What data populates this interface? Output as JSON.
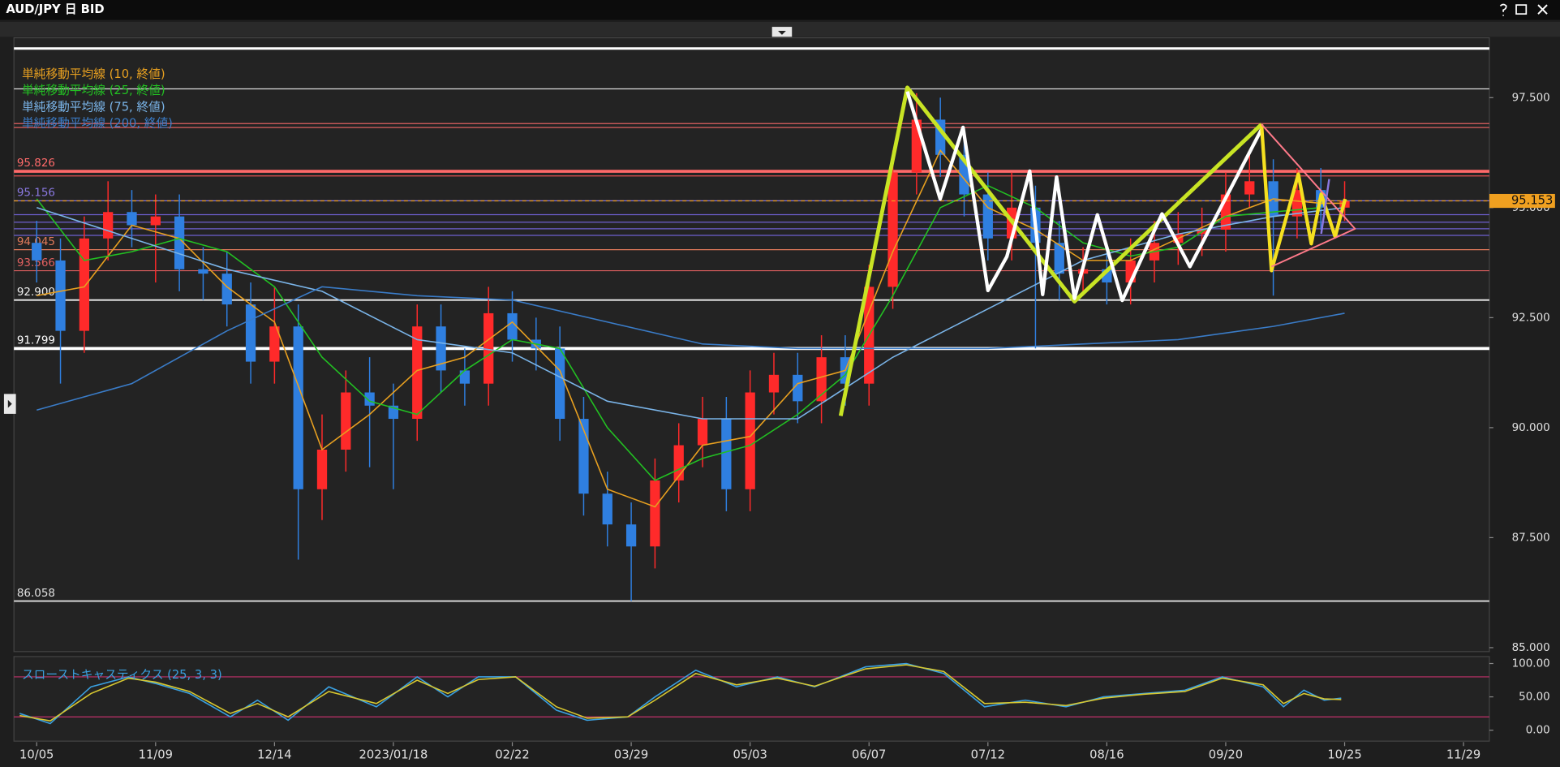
{
  "chart_data": [
    {
      "type": "candlestick",
      "title": "AUD/JPY 日 BID",
      "xlim": [
        -6.7,
        427.6
      ],
      "xticks": [
        {
          "value": 0,
          "label": "10/05"
        },
        {
          "value": 35,
          "label": "11/09"
        },
        {
          "value": 70,
          "label": "12/14"
        },
        {
          "value": 105,
          "label": "2023/01/18"
        },
        {
          "value": 140,
          "label": "02/22"
        },
        {
          "value": 175,
          "label": "03/29"
        },
        {
          "value": 210,
          "label": "05/03"
        },
        {
          "value": 245,
          "label": "06/07"
        },
        {
          "value": 280,
          "label": "07/12"
        },
        {
          "value": 315,
          "label": "08/16"
        },
        {
          "value": 350,
          "label": "09/20"
        },
        {
          "value": 385,
          "label": "10/25"
        },
        {
          "value": 420,
          "label": "11/29"
        }
      ],
      "ylim": [
        84.91,
        98.86
      ],
      "yticks": [
        {
          "value": 85,
          "label": "85.000"
        },
        {
          "value": 87.5,
          "label": "87.500"
        },
        {
          "value": 90,
          "label": "90.000"
        },
        {
          "value": 92.5,
          "label": "92.500"
        },
        {
          "value": 95,
          "label": "95.000"
        },
        {
          "value": 97.5,
          "label": "97.500"
        }
      ],
      "up_color": "#ff2a2a",
      "down_color": "#2f7fe0",
      "candles": {
        "x": [
          0,
          7,
          14,
          21,
          28,
          35,
          42,
          49,
          56,
          63,
          70,
          77,
          84,
          91,
          98,
          105,
          112,
          119,
          126,
          133,
          140,
          147,
          154,
          161,
          168,
          175,
          182,
          189,
          196,
          203,
          210,
          217,
          224,
          231,
          238,
          245,
          252,
          259,
          266,
          273,
          280,
          287,
          294,
          301,
          308,
          315,
          322,
          329,
          336,
          343,
          350,
          357,
          364,
          371,
          378,
          385
        ],
        "open": [
          94.2,
          93.8,
          92.2,
          94.3,
          94.9,
          94.6,
          94.8,
          93.6,
          93.5,
          92.8,
          91.5,
          92.3,
          88.6,
          89.5,
          90.8,
          90.5,
          90.2,
          92.3,
          91.3,
          91.0,
          92.6,
          92.0,
          91.8,
          90.2,
          88.5,
          87.8,
          87.3,
          88.8,
          89.6,
          90.2,
          88.6,
          90.8,
          91.2,
          90.6,
          91.6,
          91.0,
          93.2,
          95.8,
          97.0,
          96.2,
          95.3,
          94.3,
          95.0,
          94.2,
          93.5,
          93.6,
          93.3,
          93.8,
          94.2,
          94.4,
          94.5,
          95.3,
          95.6,
          94.8,
          95.4,
          95.0
        ],
        "high": [
          94.7,
          94.3,
          94.8,
          95.6,
          95.4,
          95.3,
          95.3,
          94.1,
          94.0,
          93.3,
          93.2,
          92.8,
          90.3,
          91.3,
          91.6,
          91.0,
          92.8,
          92.8,
          91.8,
          93.2,
          93.1,
          92.5,
          92.3,
          90.7,
          89.0,
          88.3,
          89.3,
          90.1,
          90.7,
          90.7,
          91.3,
          91.7,
          91.7,
          92.1,
          92.1,
          93.7,
          96.3,
          97.6,
          97.5,
          96.7,
          95.8,
          95.8,
          95.5,
          94.7,
          94.1,
          94.1,
          94.3,
          94.7,
          94.9,
          95.0,
          95.8,
          96.3,
          96.1,
          95.9,
          95.9,
          95.6
        ],
        "low": [
          93.3,
          91.0,
          91.7,
          93.8,
          94.1,
          93.3,
          93.1,
          92.9,
          92.3,
          91.0,
          91.0,
          87.0,
          87.9,
          89.0,
          89.1,
          88.6,
          89.7,
          90.8,
          90.5,
          90.5,
          91.5,
          91.3,
          89.7,
          88.0,
          87.3,
          86.06,
          86.8,
          88.3,
          89.1,
          88.1,
          88.1,
          90.3,
          90.1,
          90.1,
          90.5,
          90.5,
          92.7,
          95.3,
          95.7,
          94.8,
          93.8,
          93.8,
          91.8,
          92.9,
          93.0,
          92.8,
          92.8,
          93.3,
          93.7,
          93.9,
          94.0,
          95.0,
          93.0,
          94.3,
          94.5,
          94.7
        ],
        "close": [
          93.8,
          92.2,
          94.3,
          94.9,
          94.6,
          94.8,
          93.6,
          93.5,
          92.8,
          91.5,
          92.3,
          88.6,
          89.5,
          90.8,
          90.5,
          90.2,
          92.3,
          91.3,
          91.0,
          92.6,
          92.0,
          91.8,
          90.2,
          88.5,
          87.8,
          87.3,
          88.8,
          89.6,
          90.2,
          88.6,
          90.8,
          91.2,
          90.6,
          91.6,
          91.0,
          93.2,
          95.8,
          97.0,
          96.2,
          95.3,
          94.3,
          95.0,
          94.2,
          93.5,
          93.6,
          93.3,
          93.8,
          94.2,
          94.4,
          94.5,
          95.3,
          95.6,
          94.8,
          95.4,
          95.0,
          95.15
        ]
      },
      "series": [
        {
          "name": "単純移動平均線 (10, 終値)",
          "color": "#e8a020",
          "x": [
            0,
            14,
            28,
            42,
            56,
            70,
            84,
            98,
            112,
            126,
            140,
            154,
            168,
            182,
            196,
            210,
            224,
            238,
            252,
            266,
            280,
            294,
            308,
            322,
            336,
            350,
            364,
            378,
            385
          ],
          "values": [
            93.0,
            93.2,
            94.6,
            94.3,
            93.2,
            92.4,
            89.5,
            90.3,
            91.3,
            91.6,
            92.4,
            91.3,
            88.6,
            88.2,
            89.6,
            89.8,
            91.0,
            91.3,
            94.0,
            96.3,
            95.0,
            94.5,
            93.8,
            93.8,
            94.3,
            94.8,
            95.2,
            95.1,
            95.1
          ]
        },
        {
          "name": "単純移動平均線 (25, 終値)",
          "color": "#22c022",
          "x": [
            0,
            14,
            28,
            42,
            56,
            70,
            84,
            98,
            112,
            126,
            140,
            154,
            168,
            182,
            196,
            210,
            224,
            238,
            252,
            266,
            280,
            294,
            308,
            322,
            336,
            350,
            364,
            378
          ],
          "values": [
            95.2,
            93.8,
            94.0,
            94.3,
            94.0,
            93.2,
            91.6,
            90.6,
            90.3,
            91.3,
            92.0,
            91.8,
            90.0,
            88.8,
            89.3,
            89.6,
            90.3,
            91.2,
            93.0,
            95.0,
            95.5,
            95.0,
            94.2,
            93.9,
            94.1,
            94.8,
            94.9,
            95.0
          ]
        },
        {
          "name": "単純移動平均線 (75, 終値)",
          "color": "#7ab4e8",
          "x": [
            0,
            28,
            56,
            84,
            112,
            140,
            168,
            196,
            224,
            252,
            280,
            308,
            336,
            364,
            385
          ],
          "values": [
            95.0,
            94.3,
            93.6,
            93.1,
            92.0,
            91.7,
            90.6,
            90.2,
            90.2,
            91.6,
            92.7,
            93.8,
            94.4,
            94.8,
            95.0
          ]
        },
        {
          "name": "単純移動平均線 (200, 終値)",
          "color": "#3a7cc8",
          "x": [
            0,
            28,
            56,
            84,
            112,
            140,
            168,
            196,
            224,
            252,
            280,
            308,
            336,
            364,
            385
          ],
          "values": [
            90.4,
            91.0,
            92.2,
            93.2,
            93.0,
            92.9,
            92.4,
            91.9,
            91.8,
            91.8,
            91.8,
            91.9,
            92.0,
            92.3,
            92.6
          ]
        }
      ],
      "levels": [
        {
          "value": 98.617,
          "color": "#ffffff",
          "width": 2.5
        },
        {
          "value": 97.7,
          "color": "#dddddd",
          "width": 1
        },
        {
          "value": 96.91,
          "color": "#e06060",
          "width": 1
        },
        {
          "value": 96.82,
          "color": "#e06060",
          "width": 1
        },
        {
          "value": 95.826,
          "color": "#ff6a6a",
          "width": 3,
          "labeled": true
        },
        {
          "value": 95.72,
          "color": "#e05050",
          "width": 1
        },
        {
          "value": 95.156,
          "color": "#8a78e0",
          "width": 1,
          "labeled": true
        },
        {
          "value": 94.84,
          "color": "#6f60d0",
          "width": 1
        },
        {
          "value": 94.67,
          "color": "#6f60d0",
          "width": 1
        },
        {
          "value": 94.52,
          "color": "#6f60d0",
          "width": 1
        },
        {
          "value": 94.37,
          "color": "#6f60d0",
          "width": 1
        },
        {
          "value": 94.045,
          "color": "#e07a5a",
          "width": 1,
          "labeled": true
        },
        {
          "value": 93.566,
          "color": "#e06060",
          "width": 1,
          "labeled": true
        },
        {
          "value": 92.9,
          "label": "92.900",
          "color": "#f0f0f0",
          "width": 1.5,
          "labeled": true
        },
        {
          "value": 91.799,
          "color": "#ffffff",
          "width": 3,
          "labeled": true
        },
        {
          "value": 86.058,
          "color": "#e0e0e0",
          "width": 1.5,
          "labeled": true
        }
      ],
      "last_price": 95.153,
      "last_color": "#f0a020"
    },
    {
      "type": "line",
      "title": "スローストキャスティクス (25, 3, 3)",
      "title_color": "#3aa0e0",
      "ylim": [
        -16.4,
        110.4
      ],
      "yticks": [
        {
          "value": 0,
          "label": "0.00"
        },
        {
          "value": 50,
          "label": "50.00"
        },
        {
          "value": 100,
          "label": "100.00"
        }
      ],
      "levels": [
        80,
        20
      ],
      "level_color": "#c0306a",
      "x": [
        -5,
        4,
        16,
        27,
        35,
        45,
        57,
        65,
        74,
        86,
        100,
        112,
        121,
        130,
        141,
        153,
        162,
        174,
        182,
        194,
        206,
        218,
        229,
        244,
        256,
        267,
        279,
        291,
        303,
        314,
        326,
        338,
        349,
        361,
        367,
        373,
        379,
        384
      ],
      "series": [
        {
          "color": "#3aa0e0",
          "values": [
            25,
            10,
            65,
            80,
            70,
            55,
            20,
            45,
            15,
            65,
            35,
            80,
            50,
            80,
            80,
            30,
            15,
            20,
            50,
            90,
            65,
            80,
            65,
            95,
            100,
            85,
            35,
            45,
            35,
            50,
            55,
            60,
            80,
            65,
            35,
            60,
            45,
            48
          ]
        },
        {
          "color": "#d8c830",
          "values": [
            22,
            14,
            55,
            78,
            72,
            58,
            25,
            40,
            20,
            58,
            40,
            75,
            55,
            76,
            80,
            35,
            18,
            20,
            45,
            85,
            68,
            78,
            66,
            92,
            98,
            88,
            40,
            42,
            37,
            48,
            54,
            58,
            78,
            68,
            40,
            55,
            47,
            46
          ]
        }
      ]
    }
  ]
}
